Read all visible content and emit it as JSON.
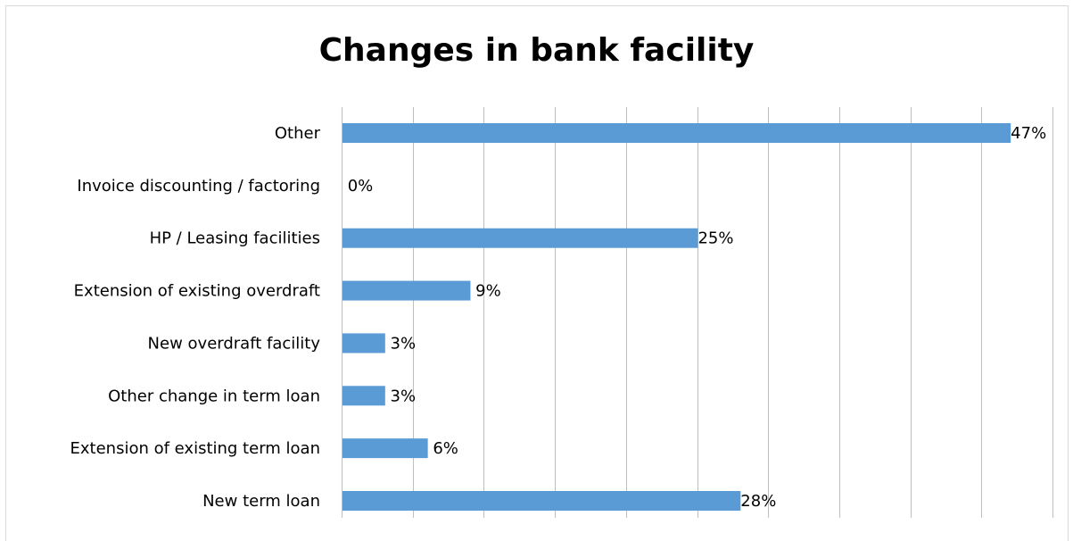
{
  "chart_data": {
    "type": "bar",
    "orientation": "horizontal",
    "title": "Changes in bank facility",
    "categories": [
      "Other",
      "Invoice discounting / factoring",
      "HP / Leasing facilities",
      "Extension of existing overdraft",
      "New overdraft facility",
      "Other change in term loan",
      "Extension of existing term loan",
      "New term loan"
    ],
    "values": [
      47,
      0,
      25,
      9,
      3,
      3,
      6,
      28
    ],
    "value_labels": [
      "47%",
      "0%",
      "25%",
      "9%",
      "3%",
      "3%",
      "6%",
      "28%"
    ],
    "unit": "%",
    "xlim": [
      0,
      50
    ],
    "grid": "vertical",
    "legend": "none",
    "bar_color": "#5b9bd5",
    "grid_color": "#bfbfbf"
  }
}
